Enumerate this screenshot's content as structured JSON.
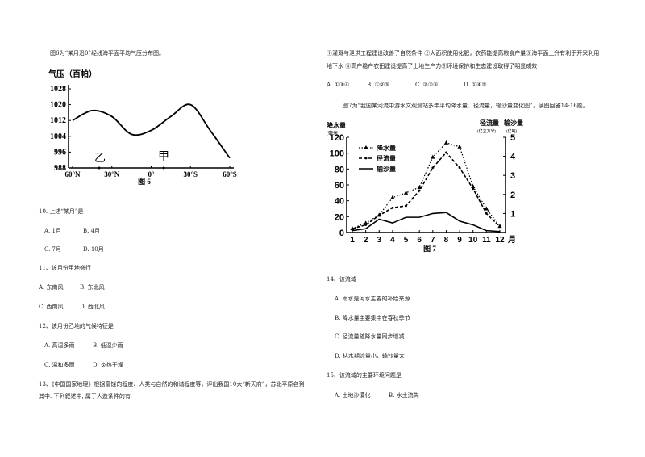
{
  "left": {
    "intro": "图6为“某月沿0°经线海平面平均气压分布图。",
    "fig6": {
      "ylabel": "气压（百帕）",
      "yticks": [
        "1028",
        "1020",
        "1012",
        "1004",
        "996",
        "988"
      ],
      "xticks": [
        "60°N",
        "30°N",
        "0°",
        "30°S",
        "60°S"
      ],
      "point_yi": "乙",
      "point_jia": "甲",
      "caption": "图 6"
    },
    "q10": {
      "stem": "10. 上述“某月”是",
      "opts": [
        "A. 1月",
        "B. 4月",
        "C. 7月",
        "D. 10月"
      ]
    },
    "q11": {
      "stem": "11、该月份甲地盛行",
      "opts": [
        "A. 东南风",
        "B. 东北风",
        "C. 西南风",
        "D. 西北风"
      ]
    },
    "q12": {
      "stem": "12、该月份乙地的气候特征是",
      "opts": [
        "A. 高温多雨",
        "B. 低温少雨",
        "C. 温和多雨",
        "D. 炎热干燥"
      ]
    },
    "q13": {
      "line1": "13、《中国国家地理》根据富饶的程度、人类与自然的和谐程度等，评出我国10大“新天府”，苏北平原名列",
      "line2": "其中. 下列叙述中, 属于人造条件的有"
    }
  },
  "right": {
    "q13_line1": "①灌溉与泄洪工程建设改善了自然条件    ②大面积使用化肥，农药能提高粮食产量③海平面上升有利于开采利用",
    "q13_line2": "地下水      ④高产稳产农田建设提高了土地生产力⑤环境保护和生态建设取得了明显成效",
    "q13_opts": [
      "A. ①③④",
      "B. ①②⑤",
      "C. ②③⑤",
      "D. ①④⑤"
    ],
    "intro7": "图7为“我国某河流中游水文观测站多年平均降水量、径流量，输沙量变化图”，读图回答14-16题。",
    "fig7": {
      "ylabel_left_1": "降水量",
      "ylabel_left_2": "(毫米)",
      "ylabel_right1_1": "径流量",
      "ylabel_right1_2": "(亿立方米)",
      "ylabel_right2_1": "输沙量",
      "ylabel_right2_2": "(亿吨)",
      "yticks_left": [
        "120",
        "100",
        "80",
        "60",
        "40",
        "20",
        "0"
      ],
      "yticks_right": [
        "5",
        "4",
        "3",
        "2",
        "1"
      ],
      "xticks": [
        "1",
        "2",
        "3",
        "4",
        "5",
        "6",
        "7",
        "8",
        "9",
        "10",
        "11",
        "12"
      ],
      "xunit": "月",
      "legend": [
        "降水量",
        "径流量",
        "输沙量"
      ],
      "caption": "图 7"
    },
    "q14": {
      "stem": "14、该流域",
      "opts": [
        "A. 雨水是河水主要的补给来源",
        "B. 降水量主要集中在春秋季节",
        "C. 径流量随降水量同步增减",
        "D. 枯水期流量小，输沙量大"
      ]
    },
    "q15": {
      "stem": "15、该流域的主要环境问题是",
      "opts": [
        "A. 土地沙漠化",
        "B. 水土流失"
      ]
    }
  },
  "chart_data": [
    {
      "type": "line",
      "title": "",
      "ylabel": "气压（百帕）",
      "xticks": [
        "60°N",
        "30°N",
        "0°",
        "30°S",
        "60°S"
      ],
      "x": [
        60,
        45,
        30,
        15,
        0,
        -15,
        -30,
        -45,
        -60
      ],
      "series": [
        {
          "values": [
            1012,
            1017,
            1014,
            1005,
            1007,
            1014,
            1020,
            1007,
            993
          ]
        }
      ],
      "ylim": [
        988,
        1028
      ]
    },
    {
      "type": "line",
      "xlabel": "月",
      "categories": [
        "1",
        "2",
        "3",
        "4",
        "5",
        "6",
        "7",
        "8",
        "9",
        "10",
        "11",
        "12"
      ],
      "series": [
        {
          "name": "降水量",
          "values": [
            5,
            12,
            22,
            44,
            50,
            57,
            95,
            113,
            108,
            58,
            30,
            8
          ]
        },
        {
          "name": "径流量",
          "values": [
            0.2,
            0.4,
            0.9,
            1.3,
            1.4,
            2.2,
            3.4,
            4.2,
            3.4,
            2.3,
            1.0,
            0.3
          ]
        },
        {
          "name": "输沙量",
          "values": [
            0.1,
            0.2,
            0.7,
            0.5,
            0.8,
            0.8,
            1.0,
            1.05,
            0.6,
            0.4,
            0.1,
            0.05
          ]
        }
      ],
      "ylim_left": [
        0,
        120
      ],
      "ylim_right": [
        0,
        5
      ]
    }
  ]
}
